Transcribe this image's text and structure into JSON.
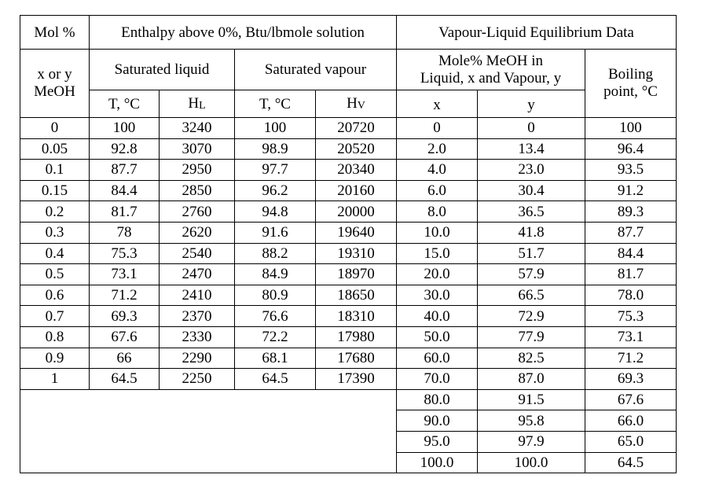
{
  "table": {
    "headers": {
      "mol_pct": "Mol %",
      "enthalpy": "Enthalpy above 0%, Btu/lbmole solution",
      "vle": "Vapour-Liquid Equilibrium Data",
      "x_or_y_line1": "x or y",
      "x_or_y_line2": "MeOH",
      "sat_liquid": "Saturated liquid",
      "sat_vapour": "Saturated vapour",
      "mole_pct_line1": "Mole% MeOH in",
      "mole_pct_line2": "Liquid, x and Vapour, y",
      "boiling_line1": "Boiling",
      "boiling_line2": "point, °C",
      "t_liq": "T, °C",
      "h_liq_main": "H",
      "h_liq_sub": "L",
      "t_vap": "T, °C",
      "h_vap_main": "H",
      "h_vap_sub": "V",
      "x": "x",
      "y": "y"
    },
    "enthalpy_rows": [
      [
        "0",
        "100",
        "3240",
        "100",
        "20720"
      ],
      [
        "0.05",
        "92.8",
        "3070",
        "98.9",
        "20520"
      ],
      [
        "0.1",
        "87.7",
        "2950",
        "97.7",
        "20340"
      ],
      [
        "0.15",
        "84.4",
        "2850",
        "96.2",
        "20160"
      ],
      [
        "0.2",
        "81.7",
        "2760",
        "94.8",
        "20000"
      ],
      [
        "0.3",
        "78",
        "2620",
        "91.6",
        "19640"
      ],
      [
        "0.4",
        "75.3",
        "2540",
        "88.2",
        "19310"
      ],
      [
        "0.5",
        "73.1",
        "2470",
        "84.9",
        "18970"
      ],
      [
        "0.6",
        "71.2",
        "2410",
        "80.9",
        "18650"
      ],
      [
        "0.7",
        "69.3",
        "2370",
        "76.6",
        "18310"
      ],
      [
        "0.8",
        "67.6",
        "2330",
        "72.2",
        "17980"
      ],
      [
        "0.9",
        "66",
        "2290",
        "68.1",
        "17680"
      ],
      [
        "1",
        "64.5",
        "2250",
        "64.5",
        "17390"
      ]
    ],
    "vle_rows": [
      [
        "0",
        "0",
        "100"
      ],
      [
        "2.0",
        "13.4",
        "96.4"
      ],
      [
        "4.0",
        "23.0",
        "93.5"
      ],
      [
        "6.0",
        "30.4",
        "91.2"
      ],
      [
        "8.0",
        "36.5",
        "89.3"
      ],
      [
        "10.0",
        "41.8",
        "87.7"
      ],
      [
        "15.0",
        "51.7",
        "84.4"
      ],
      [
        "20.0",
        "57.9",
        "81.7"
      ],
      [
        "30.0",
        "66.5",
        "78.0"
      ],
      [
        "40.0",
        "72.9",
        "75.3"
      ],
      [
        "50.0",
        "77.9",
        "73.1"
      ],
      [
        "60.0",
        "82.5",
        "71.2"
      ],
      [
        "70.0",
        "87.0",
        "69.3"
      ],
      [
        "80.0",
        "91.5",
        "67.6"
      ],
      [
        "90.0",
        "95.8",
        "66.0"
      ],
      [
        "95.0",
        "97.9",
        "65.0"
      ],
      [
        "100.0",
        "100.0",
        "64.5"
      ]
    ]
  }
}
